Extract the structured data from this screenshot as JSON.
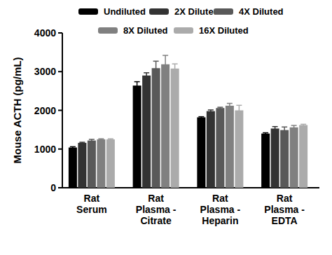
{
  "chart_data": {
    "type": "bar",
    "y_label": "Mouse ACTH (pg/mL)",
    "categories": [
      "Rat\nSerum",
      "Rat\nPlasma -\nCitrate",
      "Rat\nPlasma -\nHeparin",
      "Rat\nPlasma -\nEDTA"
    ],
    "series": [
      {
        "name": "Undiluted",
        "color": "#000000",
        "values": [
          1040,
          2640,
          1820,
          1400
        ],
        "errors": [
          20,
          100,
          15,
          20
        ]
      },
      {
        "name": "2X Diluted",
        "color": "#333333",
        "values": [
          1160,
          2900,
          1980,
          1530
        ],
        "errors": [
          15,
          70,
          30,
          50
        ]
      },
      {
        "name": "4X Diluted",
        "color": "#595959",
        "values": [
          1220,
          3090,
          2060,
          1490
        ],
        "errors": [
          30,
          180,
          20,
          80
        ]
      },
      {
        "name": "8X Diluted",
        "color": "#808080",
        "values": [
          1250,
          3190,
          2120,
          1560
        ],
        "errors": [
          15,
          230,
          60,
          50
        ]
      },
      {
        "name": "16X Diluted",
        "color": "#ababab",
        "values": [
          1250,
          3080,
          2000,
          1620
        ],
        "errors": [
          15,
          120,
          130,
          20
        ]
      }
    ],
    "ylim": [
      0,
      4000
    ],
    "yticks": [
      0,
      1000,
      2000,
      3000,
      4000
    ],
    "legend": "top",
    "grid": false
  }
}
